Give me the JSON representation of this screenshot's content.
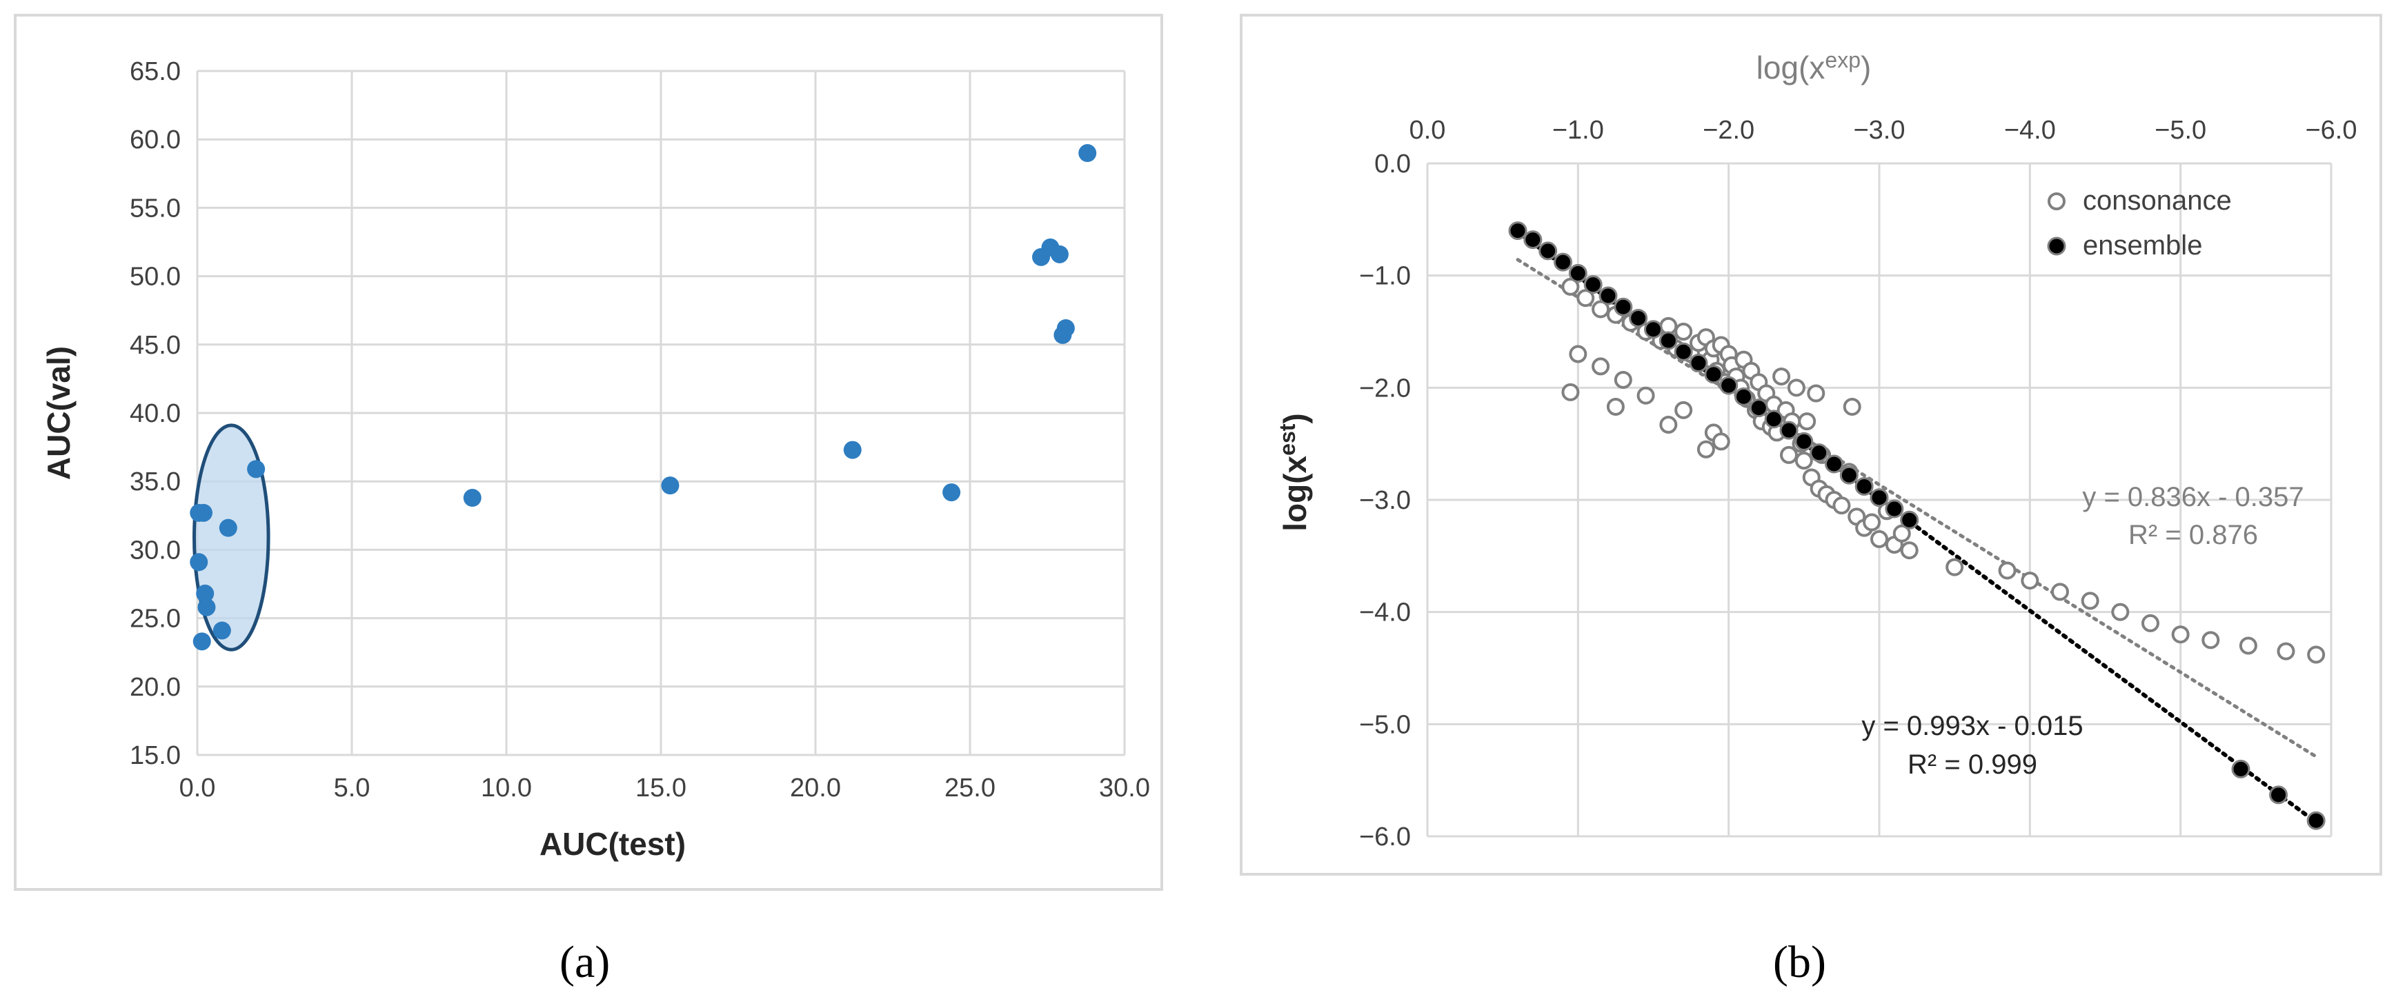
{
  "chart_data": [
    {
      "type": "scatter",
      "panel_label": "(a)",
      "xlabel": "AUC(test)",
      "ylabel": "AUC(val)",
      "xlim": [
        0,
        30
      ],
      "ylim": [
        15,
        65
      ],
      "x_ticks": [
        "0.0",
        "5.0",
        "10.0",
        "15.0",
        "20.0",
        "25.0",
        "30.0"
      ],
      "y_ticks": [
        "15.0",
        "20.0",
        "25.0",
        "30.0",
        "35.0",
        "40.0",
        "45.0",
        "50.0",
        "55.0",
        "60.0",
        "65.0"
      ],
      "grid": true,
      "marker_color": "#2e7dc1",
      "highlight_ellipse": {
        "center": [
          1.1,
          30.9
        ],
        "rx": 1.2,
        "ry": 8.2,
        "fill": "#bdd7ee",
        "stroke": "#1f4e79"
      },
      "series": [
        {
          "points": [
            [
              0.05,
              32.7
            ],
            [
              0.2,
              32.7
            ],
            [
              1.9,
              35.9
            ],
            [
              1.0,
              31.6
            ],
            [
              0.05,
              29.1
            ],
            [
              0.25,
              26.8
            ],
            [
              0.3,
              25.8
            ],
            [
              0.8,
              24.1
            ],
            [
              0.15,
              23.3
            ],
            [
              8.9,
              33.8
            ],
            [
              15.3,
              34.7
            ],
            [
              21.2,
              37.3
            ],
            [
              24.4,
              34.2
            ],
            [
              27.3,
              51.4
            ],
            [
              27.6,
              52.1
            ],
            [
              27.9,
              51.6
            ],
            [
              28.1,
              46.2
            ],
            [
              28.0,
              45.7
            ],
            [
              28.8,
              59.0
            ]
          ]
        }
      ]
    },
    {
      "type": "scatter",
      "panel_label": "(b)",
      "xlabel_prefix": "log(x",
      "xlabel_sup": "exp",
      "xlabel_suffix": ")",
      "ylabel_prefix": "log(x",
      "ylabel_sup": "est",
      "ylabel_suffix": ")",
      "x_axis_position": "top",
      "x_reversed": true,
      "xlim": [
        0,
        -6
      ],
      "ylim": [
        -6,
        0
      ],
      "x_ticks": [
        "0.0",
        "−1.0",
        "−2.0",
        "−3.0",
        "−4.0",
        "−5.0",
        "−6.0"
      ],
      "y_ticks": [
        "0.0",
        "−1.0",
        "−2.0",
        "−3.0",
        "−4.0",
        "−5.0",
        "−6.0"
      ],
      "grid": true,
      "legend_position": "top-right",
      "series": [
        {
          "name": "consonance",
          "marker": "open-circle",
          "color": "#808080",
          "points": [
            [
              -0.95,
              -2.04
            ],
            [
              -1.0,
              -1.7
            ],
            [
              -1.15,
              -1.81
            ],
            [
              -1.25,
              -2.17
            ],
            [
              -1.3,
              -1.93
            ],
            [
              -1.45,
              -2.07
            ],
            [
              -1.6,
              -2.33
            ],
            [
              -1.7,
              -2.2
            ],
            [
              -1.85,
              -2.55
            ],
            [
              -1.9,
              -2.4
            ],
            [
              -1.95,
              -2.48
            ],
            [
              -0.95,
              -1.1
            ],
            [
              -1.05,
              -1.2
            ],
            [
              -1.15,
              -1.3
            ],
            [
              -1.25,
              -1.35
            ],
            [
              -1.35,
              -1.42
            ],
            [
              -1.45,
              -1.5
            ],
            [
              -1.55,
              -1.58
            ],
            [
              -1.6,
              -1.45
            ],
            [
              -1.65,
              -1.65
            ],
            [
              -1.7,
              -1.5
            ],
            [
              -1.75,
              -1.7
            ],
            [
              -1.8,
              -1.6
            ],
            [
              -1.85,
              -1.55
            ],
            [
              -1.88,
              -1.75
            ],
            [
              -1.9,
              -1.65
            ],
            [
              -1.92,
              -1.85
            ],
            [
              -1.95,
              -1.62
            ],
            [
              -1.98,
              -1.95
            ],
            [
              -2.0,
              -1.7
            ],
            [
              -2.02,
              -1.8
            ],
            [
              -2.05,
              -1.9
            ],
            [
              -2.08,
              -2.0
            ],
            [
              -2.1,
              -1.75
            ],
            [
              -2.12,
              -2.1
            ],
            [
              -2.15,
              -1.85
            ],
            [
              -2.18,
              -2.2
            ],
            [
              -2.2,
              -1.95
            ],
            [
              -2.22,
              -2.3
            ],
            [
              -2.25,
              -2.05
            ],
            [
              -2.28,
              -2.35
            ],
            [
              -2.3,
              -2.15
            ],
            [
              -2.32,
              -2.4
            ],
            [
              -2.35,
              -1.9
            ],
            [
              -2.38,
              -2.2
            ],
            [
              -2.4,
              -2.6
            ],
            [
              -2.42,
              -2.3
            ],
            [
              -2.45,
              -2.0
            ],
            [
              -2.48,
              -2.5
            ],
            [
              -2.5,
              -2.65
            ],
            [
              -2.52,
              -2.3
            ],
            [
              -2.55,
              -2.8
            ],
            [
              -2.58,
              -2.05
            ],
            [
              -2.6,
              -2.9
            ],
            [
              -2.62,
              -2.6
            ],
            [
              -2.65,
              -2.95
            ],
            [
              -2.7,
              -3.0
            ],
            [
              -2.75,
              -3.05
            ],
            [
              -2.8,
              -2.75
            ],
            [
              -2.82,
              -2.17
            ],
            [
              -2.85,
              -3.15
            ],
            [
              -2.9,
              -3.25
            ],
            [
              -2.95,
              -3.2
            ],
            [
              -3.0,
              -3.35
            ],
            [
              -3.05,
              -3.1
            ],
            [
              -3.1,
              -3.4
            ],
            [
              -3.15,
              -3.3
            ],
            [
              -3.2,
              -3.45
            ],
            [
              -3.5,
              -3.6
            ],
            [
              -3.85,
              -3.63
            ],
            [
              -4.0,
              -3.72
            ],
            [
              -4.2,
              -3.82
            ],
            [
              -4.4,
              -3.9
            ],
            [
              -4.6,
              -4.0
            ],
            [
              -4.8,
              -4.1
            ],
            [
              -5.0,
              -4.2
            ],
            [
              -5.2,
              -4.25
            ],
            [
              -5.45,
              -4.3
            ],
            [
              -5.7,
              -4.35
            ],
            [
              -5.9,
              -4.38
            ]
          ]
        },
        {
          "name": "ensemble",
          "marker": "filled-circle",
          "color": "#000000",
          "points": [
            [
              -0.6,
              -0.6
            ],
            [
              -0.7,
              -0.68
            ],
            [
              -0.8,
              -0.78
            ],
            [
              -0.9,
              -0.88
            ],
            [
              -1.0,
              -0.98
            ],
            [
              -1.1,
              -1.08
            ],
            [
              -1.2,
              -1.18
            ],
            [
              -1.3,
              -1.28
            ],
            [
              -1.4,
              -1.38
            ],
            [
              -1.5,
              -1.48
            ],
            [
              -1.6,
              -1.58
            ],
            [
              -1.7,
              -1.68
            ],
            [
              -1.8,
              -1.78
            ],
            [
              -1.9,
              -1.88
            ],
            [
              -2.0,
              -1.98
            ],
            [
              -2.1,
              -2.08
            ],
            [
              -2.2,
              -2.18
            ],
            [
              -2.3,
              -2.28
            ],
            [
              -2.4,
              -2.38
            ],
            [
              -2.5,
              -2.48
            ],
            [
              -2.6,
              -2.58
            ],
            [
              -2.7,
              -2.68
            ],
            [
              -2.8,
              -2.78
            ],
            [
              -2.9,
              -2.88
            ],
            [
              -3.0,
              -2.98
            ],
            [
              -3.1,
              -3.08
            ],
            [
              -3.2,
              -3.18
            ],
            [
              -5.4,
              -5.4
            ],
            [
              -5.65,
              -5.63
            ],
            [
              -5.9,
              -5.86
            ]
          ]
        }
      ],
      "trendlines": [
        {
          "series": "consonance",
          "color": "#808080",
          "style": "dotted",
          "x_range": [
            -0.6,
            -5.9
          ],
          "slope": 0.836,
          "intercept": -0.357,
          "equation": "y = 0.836x - 0.357",
          "r2": "R² = 0.876"
        },
        {
          "series": "ensemble",
          "color": "#000000",
          "style": "dotted",
          "x_range": [
            -0.6,
            -5.9
          ],
          "slope": 0.993,
          "intercept": -0.015,
          "equation": "y = 0.993x - 0.015",
          "r2": "R² = 0.999"
        }
      ]
    }
  ]
}
